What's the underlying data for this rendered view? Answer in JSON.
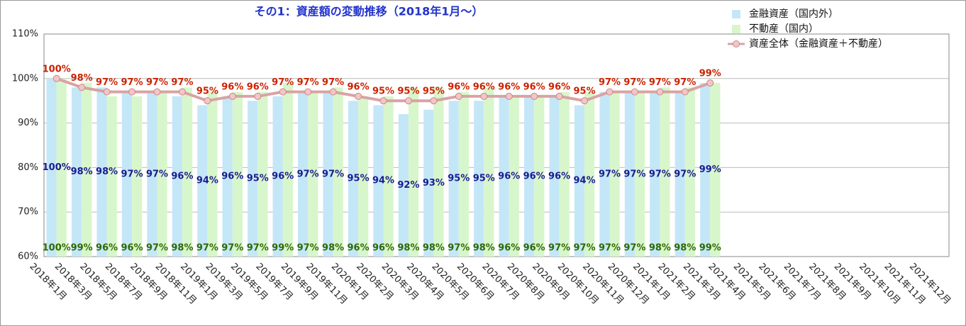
{
  "chart_data": {
    "type": "bar_line",
    "title": "その1：資産額の変動推移（2018年1月〜）",
    "categories": [
      "2018年1月",
      "2018年3月",
      "2018年5月",
      "2018年7月",
      "2018年9月",
      "2018年11月",
      "2019年1月",
      "2019年3月",
      "2019年5月",
      "2019年7月",
      "2019年9月",
      "2019年11月",
      "2020年1月",
      "2020年2月",
      "2020年3月",
      "2020年4月",
      "2020年5月",
      "2020年6月",
      "2020年7月",
      "2020年8月",
      "2020年9月",
      "2020年10月",
      "2020年11月",
      "2020年12月",
      "2021年1月",
      "2021年2月",
      "2021年3月",
      "2021年4月",
      "2021年5月",
      "2021年6月",
      "2021年7月",
      "2021年8月",
      "2021年9月",
      "2021年10月",
      "2021年11月",
      "2021年12月"
    ],
    "series": [
      {
        "name": "金融資産（国内外）",
        "kind": "bar",
        "color": "#c4e7f8",
        "label_color": "#1c1c8f",
        "values": [
          100,
          98,
          98,
          97,
          97,
          96,
          94,
          96,
          95,
          96,
          97,
          97,
          95,
          94,
          92,
          93,
          95,
          95,
          96,
          96,
          96,
          94,
          97,
          97,
          97,
          97,
          99,
          null,
          null,
          null,
          null,
          null,
          null,
          null,
          null,
          null
        ],
        "value_labels": [
          "100%",
          "98%",
          "98%",
          "97%",
          "97%",
          "96%",
          "94%",
          "96%",
          "95%",
          "96%",
          "97%",
          "97%",
          "95%",
          "94%",
          "92%",
          "93%",
          "95%",
          "95%",
          "96%",
          "96%",
          "96%",
          "94%",
          "97%",
          "97%",
          "97%",
          "97%",
          "99%",
          null,
          null,
          null,
          null,
          null,
          null,
          null,
          null,
          null
        ]
      },
      {
        "name": "不動産（国内）",
        "kind": "bar",
        "color": "#d8f6cb",
        "label_color": "#2f6a00",
        "values": [
          100,
          99,
          96,
          96,
          97,
          98,
          97,
          97,
          97,
          99,
          97,
          98,
          96,
          96,
          98,
          98,
          97,
          98,
          96,
          96,
          97,
          97,
          97,
          97,
          98,
          98,
          99,
          null,
          null,
          null,
          null,
          null,
          null,
          null,
          null,
          null
        ],
        "value_labels": [
          "100%",
          "99%",
          "96%",
          "96%",
          "97%",
          "98%",
          "97%",
          "97%",
          "97%",
          "99%",
          "97%",
          "98%",
          "96%",
          "96%",
          "98%",
          "98%",
          "97%",
          "98%",
          "96%",
          "96%",
          "97%",
          "97%",
          "97%",
          "97%",
          "98%",
          "98%",
          "99%",
          null,
          null,
          null,
          null,
          null,
          null,
          null,
          null,
          null
        ]
      },
      {
        "name": "資産全体（金融資産＋不動産）",
        "kind": "line",
        "color": "#d9a3a3",
        "label_color": "#cc2200",
        "values": [
          100,
          98,
          97,
          97,
          97,
          97,
          95,
          96,
          96,
          97,
          97,
          97,
          96,
          95,
          95,
          95,
          96,
          96,
          96,
          96,
          96,
          95,
          97,
          97,
          97,
          97,
          99,
          null,
          null,
          null,
          null,
          null,
          null,
          null,
          null,
          null
        ],
        "value_labels": [
          "100%",
          "98%",
          "97%",
          "97%",
          "97%",
          "97%",
          "95%",
          "96%",
          "96%",
          "97%",
          "97%",
          "97%",
          "96%",
          "95%",
          "95%",
          "95%",
          "96%",
          "96%",
          "96%",
          "96%",
          "96%",
          "95%",
          "97%",
          "97%",
          "97%",
          "97%",
          "99%",
          null,
          null,
          null,
          null,
          null,
          null,
          null,
          null,
          null
        ]
      }
    ],
    "ylim": [
      60,
      110
    ],
    "yticks": [
      {
        "value": 60,
        "label": "60%"
      },
      {
        "value": 70,
        "label": "70%"
      },
      {
        "value": 80,
        "label": "80%"
      },
      {
        "value": 90,
        "label": "90%"
      },
      {
        "value": 100,
        "label": "100%"
      },
      {
        "value": 110,
        "label": "110%"
      }
    ],
    "grid": true,
    "legend": "top-right"
  }
}
